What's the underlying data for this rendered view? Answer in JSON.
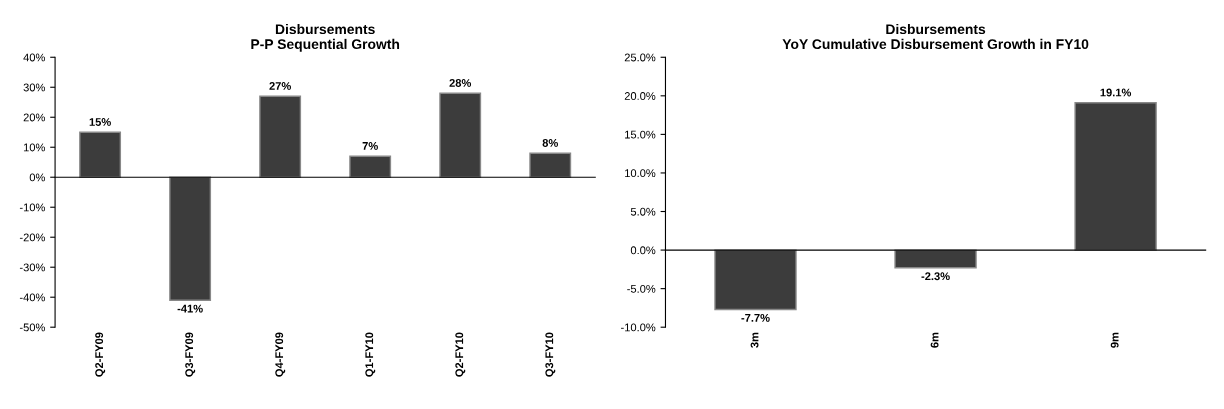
{
  "chart_data": [
    {
      "type": "bar",
      "title": "Disbursements\nP-P Sequential Growth",
      "categories": [
        "Q2-FY09",
        "Q3-FY09",
        "Q4-FY09",
        "Q1-FY10",
        "Q2-FY10",
        "Q3-FY10"
      ],
      "values": [
        15,
        -41,
        27,
        7,
        28,
        8
      ],
      "value_labels": [
        "15%",
        "-41%",
        "27%",
        "7%",
        "28%",
        "8%"
      ],
      "color": "#3c3c3c",
      "ylim": [
        -50,
        40
      ],
      "yticks": [
        {
          "value": -50,
          "label": "-50%"
        },
        {
          "value": -40,
          "label": "-40%"
        },
        {
          "value": -30,
          "label": "-30%"
        },
        {
          "value": -20,
          "label": "-20%"
        },
        {
          "value": -10,
          "label": "-10%"
        },
        {
          "value": 0,
          "label": "0%"
        },
        {
          "value": 10,
          "label": "10%"
        },
        {
          "value": 20,
          "label": "20%"
        },
        {
          "value": 30,
          "label": "30%"
        },
        {
          "value": 40,
          "label": "40%"
        }
      ],
      "legend": false
    },
    {
      "type": "bar",
      "title": "Disbursements\nYoY Cumulative Disbursement Growth in FY10",
      "categories": [
        "3m",
        "6m",
        "9m"
      ],
      "values": [
        -7.7,
        -2.3,
        19.1
      ],
      "value_labels": [
        "-7.7%",
        "-2.3%",
        "19.1%"
      ],
      "color": "#3c3c3c",
      "ylim": [
        -10,
        25
      ],
      "yticks": [
        {
          "value": -10,
          "label": "-10.0%"
        },
        {
          "value": -5,
          "label": "-5.0%"
        },
        {
          "value": 0,
          "label": "0.0%"
        },
        {
          "value": 5,
          "label": "5.0%"
        },
        {
          "value": 10,
          "label": "10.0%"
        },
        {
          "value": 15,
          "label": "15.0%"
        },
        {
          "value": 20,
          "label": "20.0%"
        },
        {
          "value": 25,
          "label": "25.0%"
        }
      ],
      "legend": false
    }
  ]
}
